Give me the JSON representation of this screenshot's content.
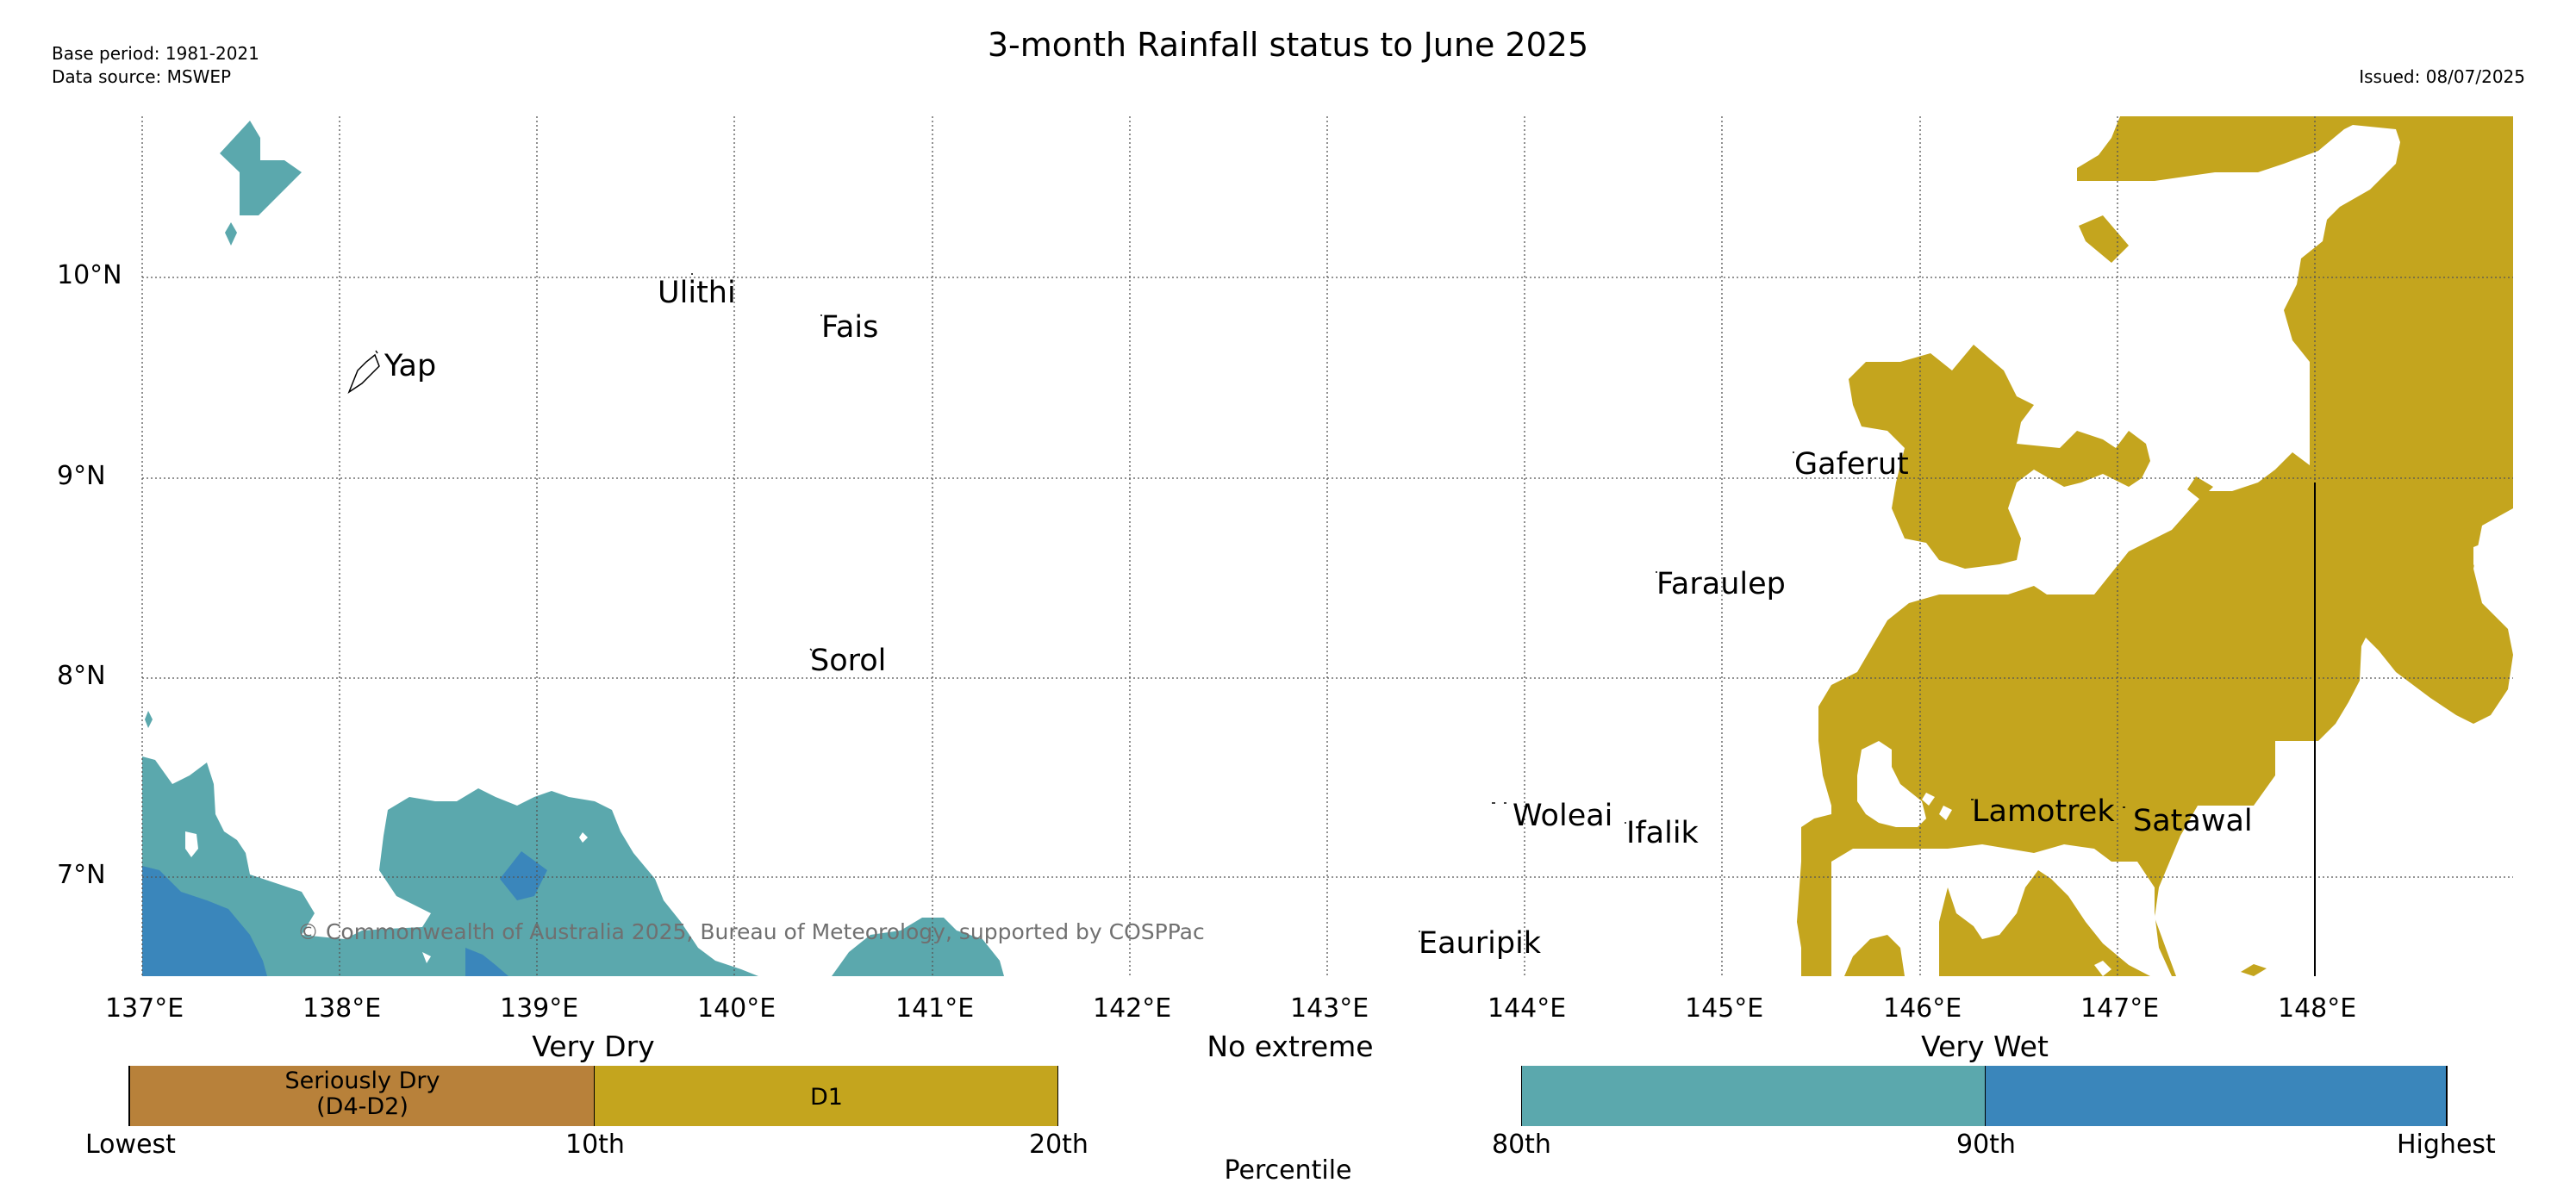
{
  "header": {
    "title": "3-month Rainfall status to June 2025",
    "base_period": "Base period: 1981-2021",
    "data_source": "Data source: MSWEP",
    "issued": "Issued: 08/07/2025"
  },
  "map": {
    "lon_labels": [
      "137°E",
      "138°E",
      "139°E",
      "140°E",
      "141°E",
      "142°E",
      "143°E",
      "144°E",
      "145°E",
      "146°E",
      "147°E",
      "148°E"
    ],
    "lat_labels": [
      "10°N",
      "9°N",
      "8°N",
      "7°N"
    ],
    "places": {
      "yap": "Yap",
      "ulithi": "Ulithi",
      "fais": "Fais",
      "sorol": "Sorol",
      "gaferut": "Gaferut",
      "faraulep": "Faraulep",
      "woleai": "Woleai",
      "ifalik": "Ifalik",
      "lamotrek": "Lamotrek",
      "satawal": "Satawal",
      "eauripik": "Eauripik"
    },
    "copyright": "© Commonwealth of Australia 2025, Bureau of Meteorology, supported by COSPPac"
  },
  "legend": {
    "categories": {
      "very_dry": "Very Dry",
      "no_extreme": "No extreme",
      "very_wet": "Very Wet"
    },
    "boxes": {
      "seriously_dry_line1": "Seriously Dry",
      "seriously_dry_line2": "(D4-D2)",
      "d1": "D1"
    },
    "ticks": {
      "lowest": "Lowest",
      "p10": "10th",
      "p20": "20th",
      "p80": "80th",
      "p90": "90th",
      "highest": "Highest"
    },
    "axis_label": "Percentile",
    "colors": {
      "seriously_dry": "#b8813a",
      "d1": "#c4a51e",
      "no_extreme": "#ffffff",
      "wet_80_90": "#5ba8ad",
      "wet_90_plus": "#3a86bb"
    }
  }
}
